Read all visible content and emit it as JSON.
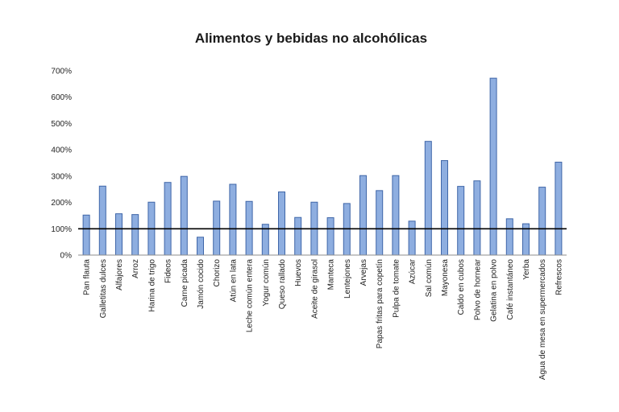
{
  "chart_data": {
    "type": "bar",
    "title": "Alimentos y bebidas no alcohólicas",
    "xlabel": "",
    "ylabel": "",
    "ylim": [
      0,
      700
    ],
    "yticks": [
      0,
      100,
      200,
      300,
      400,
      500,
      600,
      700
    ],
    "ytick_labels": [
      "0%",
      "100%",
      "200%",
      "300%",
      "400%",
      "500%",
      "600%",
      "700%"
    ],
    "reference_line": 100,
    "colors": {
      "bar_fill": "#8eaee0",
      "bar_stroke": "#3f66a8",
      "reference_line": "#000000"
    },
    "categories": [
      "Pan flauta",
      "Galletitas dulces",
      "Alfajores",
      "Arroz",
      "Harina de trigo",
      "Fideos",
      "Carne picada",
      "Jamón cocido",
      "Chorizo",
      "Atún en lata",
      "Leche común entera",
      "Yogur común",
      "Queso rallado",
      "Huevos",
      "Aceite de girasol",
      "Manteca",
      "Lentejones",
      "Arvejas",
      "Papas fritas para copetín",
      "Pulpa de tomate",
      "Azúcar",
      "Sal común",
      "Mayonesa",
      "Caldo en cubos",
      "Polvo de hornear",
      "Gelatina en polvo",
      "Café instantáneo",
      "Yerba",
      "Agua de mesa en supermercados",
      "Refrescos"
    ],
    "values": [
      152,
      262,
      157,
      154,
      201,
      276,
      299,
      68,
      205,
      269,
      204,
      117,
      240,
      143,
      201,
      142,
      196,
      302,
      245,
      302,
      129,
      432,
      359,
      261,
      282,
      672,
      138,
      119,
      258,
      353
    ]
  }
}
